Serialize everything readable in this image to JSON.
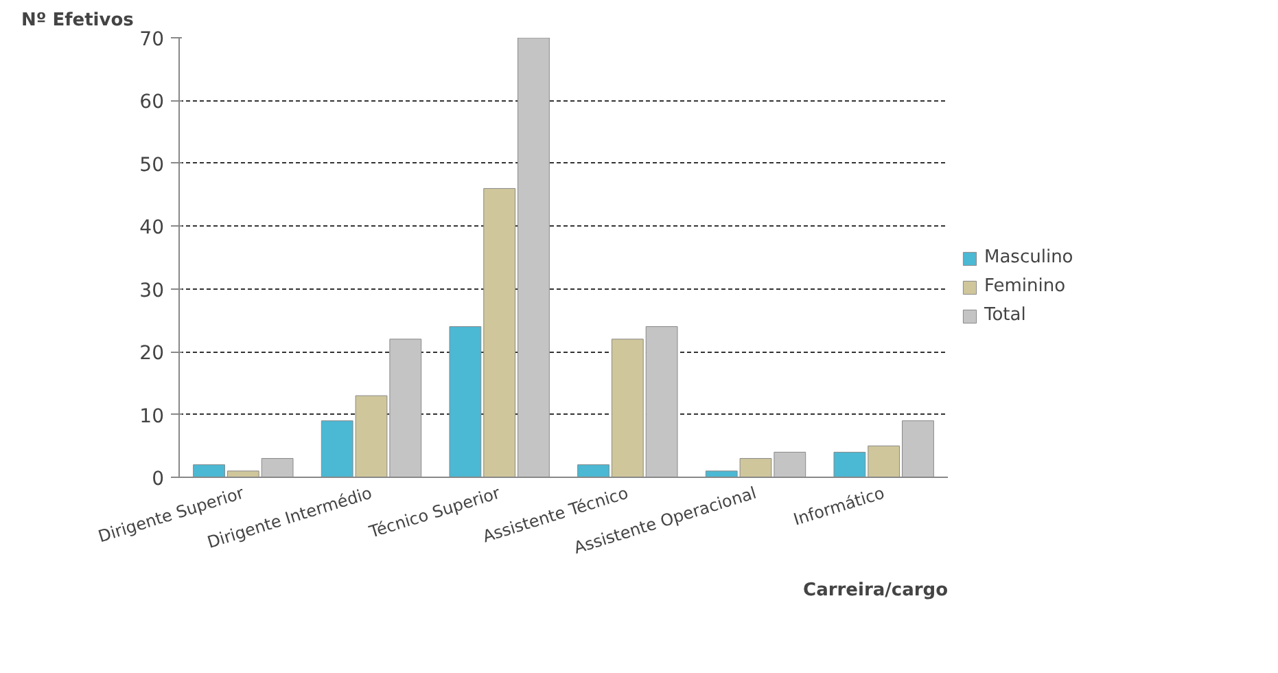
{
  "chart_data": {
    "type": "bar",
    "ylabel": "Nº Efetivos",
    "xlabel": "Carreira/cargo",
    "categories": [
      "Dirigente Superior",
      "Dirigente Intermédio",
      "Técnico Superior",
      "Assistente Técnico",
      "Assistente Operacional",
      "Informático"
    ],
    "series": [
      {
        "name": "Masculino",
        "color": "#4bb8d4",
        "values": [
          2,
          9,
          24,
          2,
          1,
          4
        ]
      },
      {
        "name": "Feminino",
        "color": "#cfc69b",
        "values": [
          1,
          13,
          46,
          22,
          3,
          5
        ]
      },
      {
        "name": "Total",
        "color": "#c4c4c4",
        "values": [
          3,
          22,
          70,
          24,
          4,
          9
        ]
      }
    ],
    "ylim": [
      0,
      70
    ],
    "yticks": [
      0,
      10,
      20,
      30,
      40,
      50,
      60,
      70
    ],
    "grid": "y",
    "legend": "right"
  }
}
